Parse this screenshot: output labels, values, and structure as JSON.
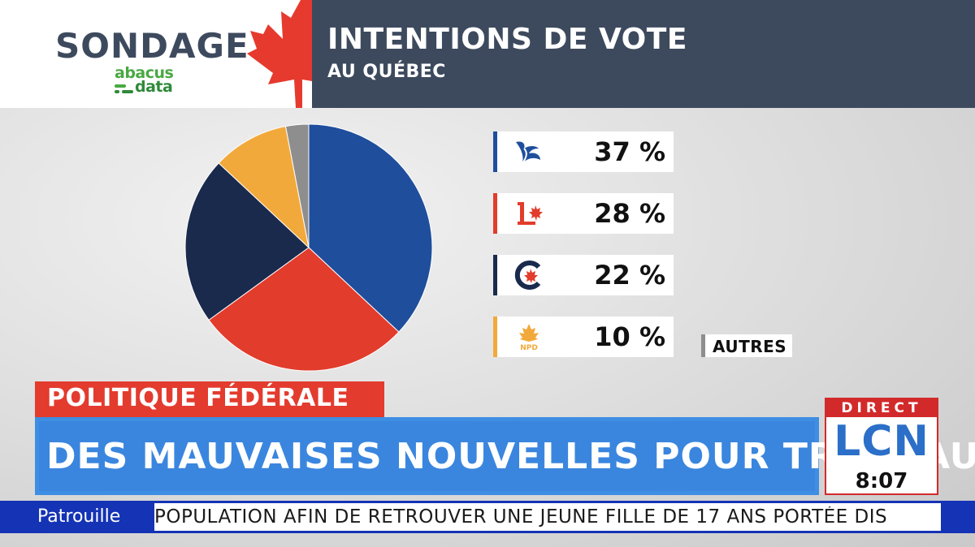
{
  "header": {
    "brand": "SONDAGE",
    "pollster_line1": "abacus",
    "pollster_line2": "data",
    "title": "INTENTIONS DE VOTE",
    "subtitle": "AU QUÉBEC"
  },
  "chart_data": {
    "type": "pie",
    "categories": [
      "Bloc Québécois",
      "Parti libéral",
      "Parti conservateur",
      "NPD",
      "Autres"
    ],
    "values": [
      37,
      28,
      22,
      10,
      3
    ],
    "colors": [
      "#1f4e9c",
      "#e23c2c",
      "#1a2a4d",
      "#f2a93b",
      "#8e8e8e"
    ],
    "labels": [
      "37 %",
      "28 %",
      "22 %",
      "10 %",
      "AUTRES"
    ]
  },
  "parties": [
    {
      "logo": "bloc-logo",
      "pct": "37 %",
      "color": "#1f4e9c"
    },
    {
      "logo": "liberal-logo",
      "pct": "28 %",
      "color": "#e23c2c"
    },
    {
      "logo": "conservative-logo",
      "pct": "22 %",
      "color": "#1a2a4d"
    },
    {
      "logo": "ndp-logo",
      "pct": "10 %",
      "color": "#f2a93b",
      "logo_text": "NPD"
    }
  ],
  "others_label": "AUTRES",
  "lower_third": {
    "topic": "POLITIQUE FÉDÉRALE",
    "headline": "DES MAUVAISES NOUVELLES POUR TRUDEAU"
  },
  "network": {
    "live": "DIRECT",
    "name": "LCN",
    "time": "8:07"
  },
  "ticker": {
    "label": "Patrouille",
    "text": "POPULATION AFIN DE RETROUVER UNE JEUNE FILLE DE 17 ANS PORTÉE DIS"
  }
}
